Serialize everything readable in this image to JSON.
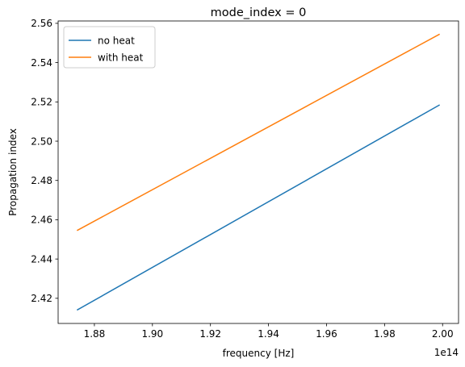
{
  "chart_data": {
    "type": "line",
    "title": "mode_index = 0",
    "xlabel": "frequency [Hz]",
    "ylabel": "Propagation index",
    "x_offset_label": "1e14",
    "xlim": [
      1.8675,
      2.0055
    ],
    "ylim": [
      2.4072,
      2.5612
    ],
    "x_ticks": [
      1.88,
      1.9,
      1.92,
      1.94,
      1.96,
      1.98,
      2.0
    ],
    "x_tick_labels": [
      "1.88",
      "1.90",
      "1.92",
      "1.94",
      "1.96",
      "1.98",
      "2.00"
    ],
    "y_ticks": [
      2.42,
      2.44,
      2.46,
      2.48,
      2.5,
      2.52,
      2.54,
      2.56
    ],
    "y_tick_labels": [
      "2.42",
      "2.44",
      "2.46",
      "2.48",
      "2.50",
      "2.52",
      "2.54",
      "2.56"
    ],
    "grid": false,
    "legend_position": "top-left",
    "series": [
      {
        "name": "no heat",
        "color": "#1f77b4",
        "x": [
          1.874,
          1.999
        ],
        "y": [
          2.414,
          2.5185
        ]
      },
      {
        "name": "with heat",
        "color": "#ff7f0e",
        "x": [
          1.874,
          1.999
        ],
        "y": [
          2.4545,
          2.5545
        ]
      }
    ]
  }
}
